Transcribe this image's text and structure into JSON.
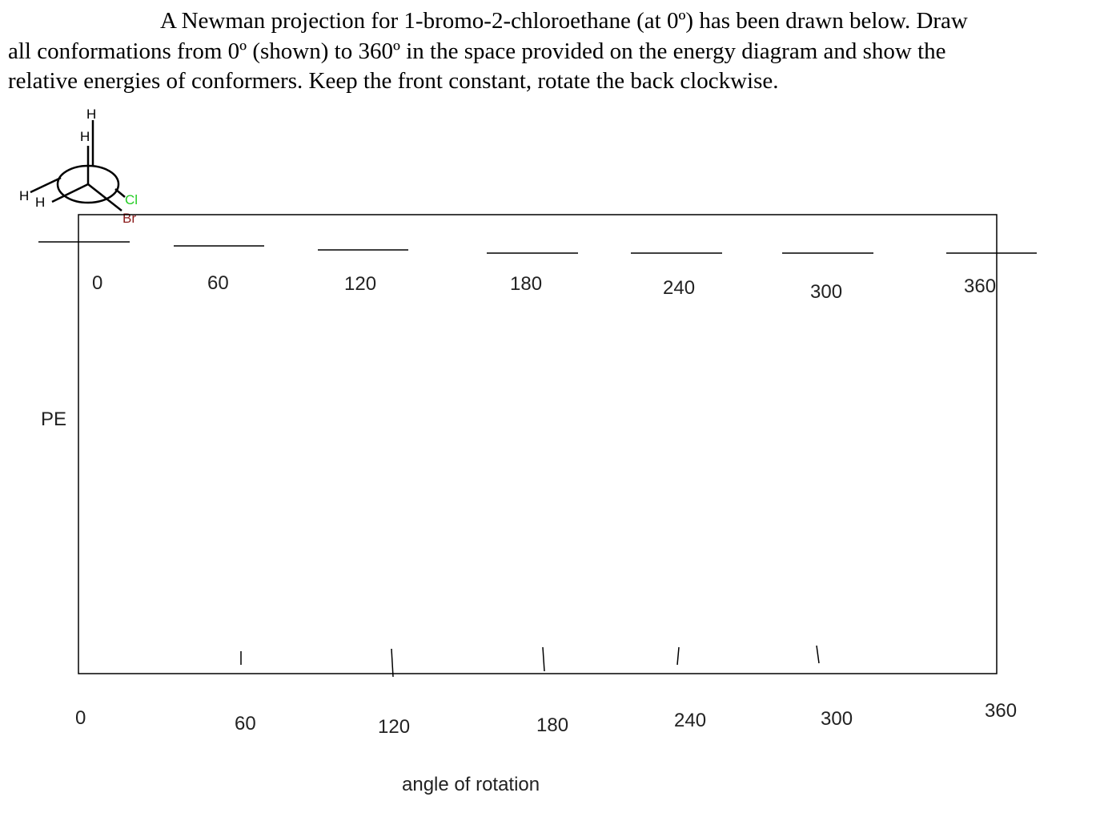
{
  "question": {
    "line1": "A Newman projection for 1-bromo-2-chloroethane (at 0º) has been drawn below.  Draw",
    "line2": "all conformations from 0º (shown) to 360º in the space provided on the energy diagram and show the",
    "line3": "relative energies of conformers.  Keep the front constant, rotate the back clockwise."
  },
  "newman": {
    "back_top_atom": "H",
    "front_top_atom": "H",
    "back_left_atom": "H",
    "front_left_atom": "H",
    "back_right_atom": "Cl",
    "front_right_atom": "Br",
    "cl_color": "#22cc22",
    "br_color": "#8b1a1a"
  },
  "diagram": {
    "y_axis_label": "PE",
    "x_axis_label": "angle of rotation",
    "top_labels": [
      "0",
      "60",
      "120",
      "180",
      "240",
      "300",
      "360"
    ],
    "bottom_labels": [
      "0",
      "60",
      "120",
      "180",
      "240",
      "300",
      "360"
    ]
  }
}
